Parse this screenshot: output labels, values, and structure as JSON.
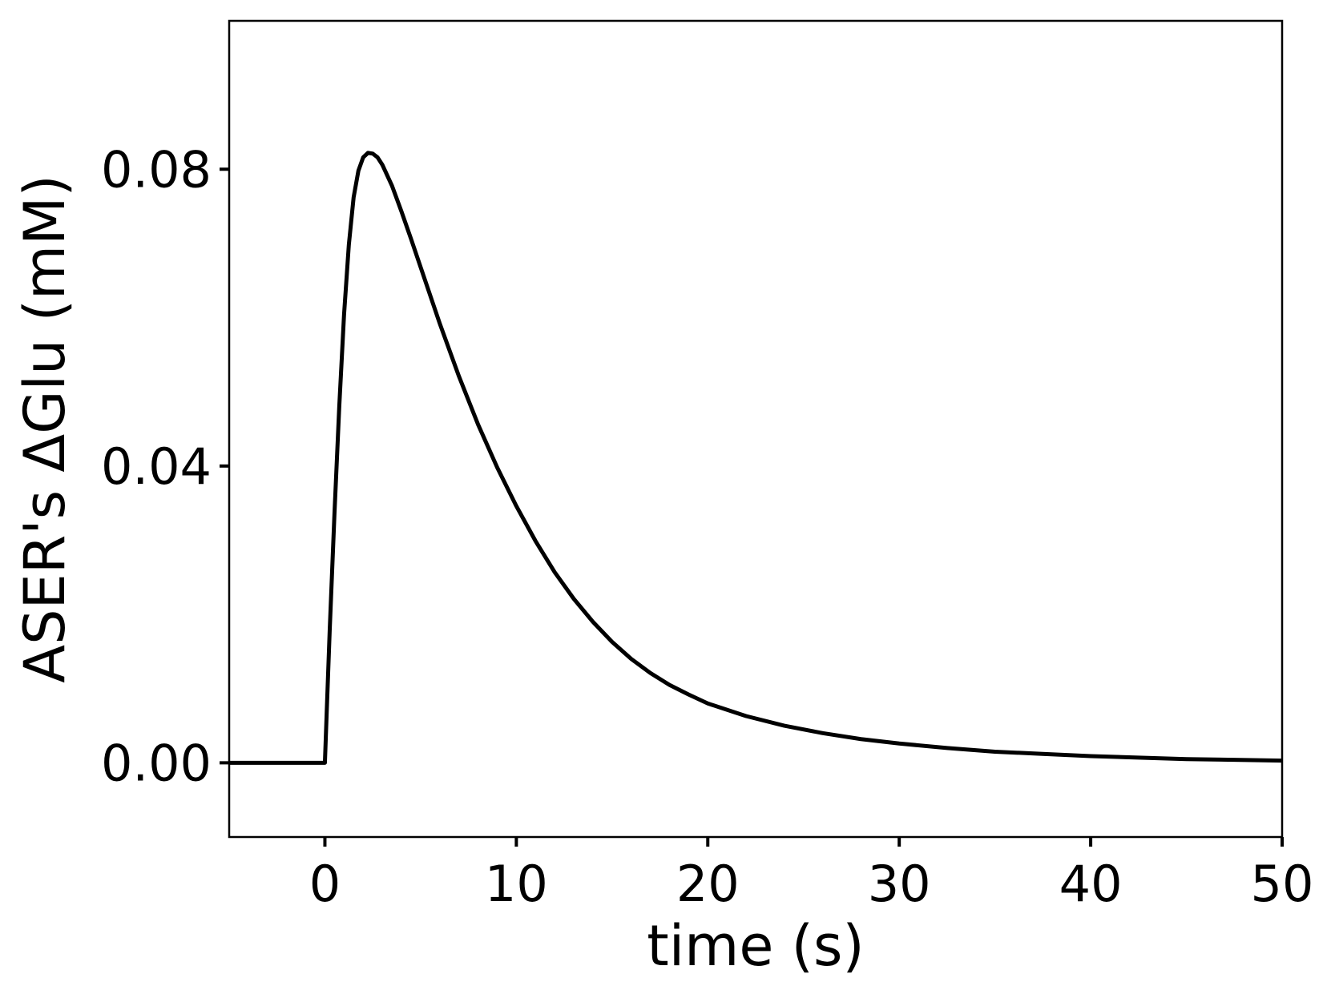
{
  "chart_data": {
    "type": "line",
    "title": "",
    "xlabel": "time (s)",
    "ylabel": "ASER's ΔGlu (mM)",
    "xlim": [
      -5,
      50
    ],
    "ylim": [
      -0.01,
      0.1
    ],
    "grid": false,
    "legend": "none",
    "line_color": "#000000",
    "x_ticks": [
      0,
      10,
      20,
      30,
      40,
      50
    ],
    "x_tick_labels": [
      "0",
      "10",
      "20",
      "30",
      "40",
      "50"
    ],
    "y_ticks": [
      0.0,
      0.04,
      0.08
    ],
    "y_tick_labels": [
      "0.00",
      "0.04",
      "0.08"
    ],
    "series": [
      {
        "x": [
          -5,
          -2.5,
          0,
          0.1,
          0.25,
          0.5,
          0.75,
          1.0,
          1.25,
          1.5,
          1.75,
          2.0,
          2.25,
          2.5,
          2.75,
          3.0,
          3.5,
          4.0,
          4.5,
          5.0,
          6.0,
          7.0,
          8.0,
          9.0,
          10.0,
          11.0,
          12.0,
          13.0,
          14.0,
          15.0,
          16.0,
          17.0,
          18.0,
          19.0,
          20.0,
          22.0,
          24.0,
          26.0,
          28.0,
          30.0,
          32.5,
          35.0,
          37.5,
          40.0,
          42.5,
          45.0,
          47.5,
          50.0
        ],
        "y": [
          0.0,
          0.0,
          0.0,
          0.0072,
          0.0178,
          0.0336,
          0.048,
          0.0604,
          0.0698,
          0.0762,
          0.0798,
          0.0816,
          0.0822,
          0.0821,
          0.0816,
          0.0806,
          0.0778,
          0.0743,
          0.0706,
          0.0668,
          0.0592,
          0.0521,
          0.0456,
          0.0398,
          0.0346,
          0.0299,
          0.0257,
          0.0221,
          0.019,
          0.0163,
          0.014,
          0.0121,
          0.0105,
          0.0092,
          0.008,
          0.0063,
          0.005,
          0.004,
          0.0032,
          0.0026,
          0.002,
          0.0015,
          0.0012,
          0.0009,
          0.0007,
          0.0005,
          0.0004,
          0.0003
        ]
      }
    ]
  }
}
